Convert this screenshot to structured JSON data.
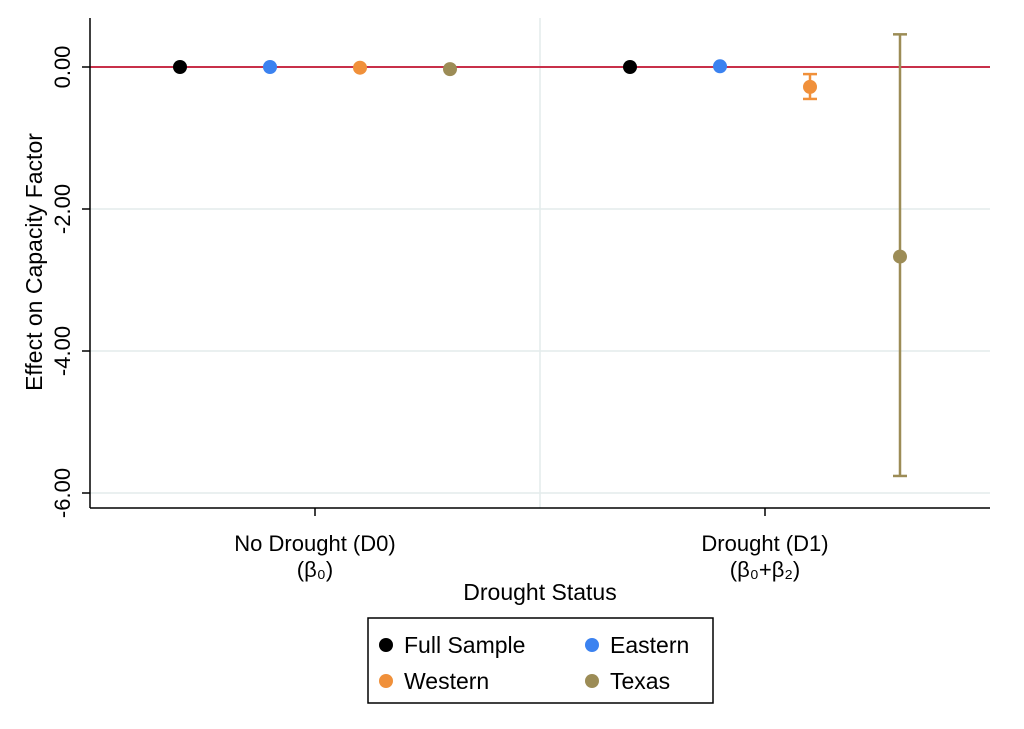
{
  "chart_data": {
    "type": "scatter",
    "title": "",
    "xlabel": "Drought Status",
    "ylabel": "Effect on Capacity Factor",
    "ylim": [
      -6.35,
      0.7
    ],
    "yticks": [
      "0.00",
      "-2.00",
      "-4.00",
      "-6.00"
    ],
    "ytick_values": [
      0,
      -2,
      -4,
      -6
    ],
    "grid": true,
    "reference_line": {
      "y": 0,
      "color": "#c8304a"
    },
    "categories": [
      {
        "label": "No Drought (D0)",
        "sublabel": "(β₀)"
      },
      {
        "label": "Drought (D1)",
        "sublabel": "(β₀+β₂)"
      }
    ],
    "series": [
      {
        "name": "Full Sample",
        "color": "#000000",
        "points": [
          {
            "category": 0,
            "value": 0.0
          },
          {
            "category": 1,
            "value": 0.0
          }
        ]
      },
      {
        "name": "Eastern",
        "color": "#3b82f0",
        "points": [
          {
            "category": 0,
            "value": 0.0
          },
          {
            "category": 1,
            "value": 0.01
          }
        ]
      },
      {
        "name": "Western",
        "color": "#f0903a",
        "points": [
          {
            "category": 0,
            "value": -0.01
          },
          {
            "category": 1,
            "value": -0.28,
            "ci": [
              -0.45,
              -0.1
            ]
          }
        ]
      },
      {
        "name": "Texas",
        "color": "#9c8c56",
        "points": [
          {
            "category": 0,
            "value": -0.03
          },
          {
            "category": 1,
            "value": -2.67,
            "ci": [
              -5.76,
              0.46
            ]
          }
        ]
      }
    ],
    "legend": {
      "placement": "bottom-center",
      "columns": 2
    }
  }
}
